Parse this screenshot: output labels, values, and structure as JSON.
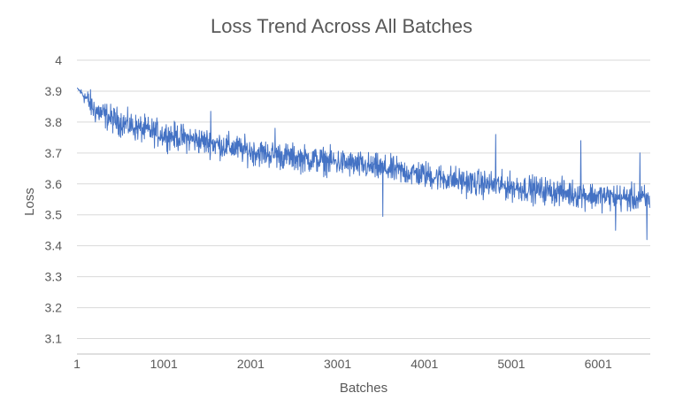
{
  "chart_data": {
    "type": "line",
    "title": "Loss Trend Across All Batches",
    "xlabel": "Batches",
    "ylabel": "Loss",
    "xlim": [
      1,
      6600
    ],
    "ylim": [
      3.05,
      4.0
    ],
    "x_ticks": [
      {
        "value": 1,
        "label": "1"
      },
      {
        "value": 1001,
        "label": "1001"
      },
      {
        "value": 2001,
        "label": "2001"
      },
      {
        "value": 3001,
        "label": "3001"
      },
      {
        "value": 4001,
        "label": "4001"
      },
      {
        "value": 5001,
        "label": "5001"
      },
      {
        "value": 6001,
        "label": "6001"
      }
    ],
    "y_ticks": [
      {
        "value": 3.1,
        "label": "3.1"
      },
      {
        "value": 3.2,
        "label": "3.2"
      },
      {
        "value": 3.3,
        "label": "3.3"
      },
      {
        "value": 3.4,
        "label": "3.4"
      },
      {
        "value": 3.5,
        "label": "3.5"
      },
      {
        "value": 3.6,
        "label": "3.6"
      },
      {
        "value": 3.7,
        "label": "3.7"
      },
      {
        "value": 3.8,
        "label": "3.8"
      },
      {
        "value": 3.9,
        "label": "3.9"
      },
      {
        "value": 4.0,
        "label": "4"
      }
    ],
    "grid": true,
    "series": [
      {
        "name": "Loss",
        "color": "#4472c4",
        "trend": [
          {
            "x": 1,
            "y": 3.91
          },
          {
            "x": 100,
            "y": 3.88
          },
          {
            "x": 200,
            "y": 3.84
          },
          {
            "x": 400,
            "y": 3.81
          },
          {
            "x": 700,
            "y": 3.78
          },
          {
            "x": 1001,
            "y": 3.76
          },
          {
            "x": 1500,
            "y": 3.735
          },
          {
            "x": 2001,
            "y": 3.705
          },
          {
            "x": 2500,
            "y": 3.685
          },
          {
            "x": 3001,
            "y": 3.67
          },
          {
            "x": 3500,
            "y": 3.65
          },
          {
            "x": 4001,
            "y": 3.63
          },
          {
            "x": 4500,
            "y": 3.605
          },
          {
            "x": 5001,
            "y": 3.59
          },
          {
            "x": 5500,
            "y": 3.575
          },
          {
            "x": 6001,
            "y": 3.56
          },
          {
            "x": 6600,
            "y": 3.55
          }
        ],
        "noise_amplitude": 0.04,
        "spikes": [
          {
            "x": 1540,
            "y": 3.835
          },
          {
            "x": 2280,
            "y": 3.78
          },
          {
            "x": 3520,
            "y": 3.495
          },
          {
            "x": 4820,
            "y": 3.76
          },
          {
            "x": 5800,
            "y": 3.74
          },
          {
            "x": 6200,
            "y": 3.45
          },
          {
            "x": 6480,
            "y": 3.7
          },
          {
            "x": 6560,
            "y": 3.42
          }
        ]
      }
    ]
  }
}
